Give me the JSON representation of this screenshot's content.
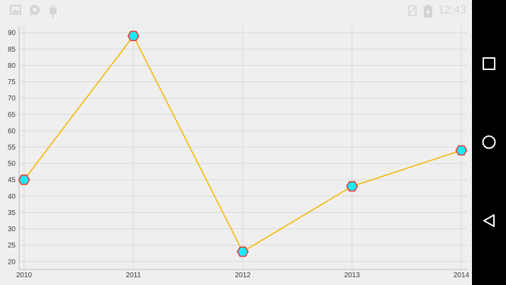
{
  "status_bar": {
    "time": "12:43",
    "icons": [
      "image-icon",
      "chat-bubble-icon",
      "android-icon",
      "no-sim-icon",
      "battery-charging-icon"
    ]
  },
  "nav_bar": {
    "buttons": [
      "recent-apps-icon",
      "home-icon",
      "back-icon"
    ]
  },
  "chart_data": {
    "type": "line",
    "x": [
      "2010",
      "2011",
      "2012",
      "2013",
      "2014"
    ],
    "values": [
      45,
      89,
      23,
      43,
      54
    ],
    "y_ticks": [
      20,
      25,
      30,
      35,
      40,
      45,
      50,
      55,
      60,
      65,
      70,
      75,
      80,
      85,
      90
    ],
    "ylim": [
      18,
      92
    ],
    "grid": true,
    "legend": "none",
    "line_color": "#f5b800",
    "marker": "hexagon",
    "marker_fill": "#1de9f6",
    "marker_stroke": "#e53935"
  }
}
